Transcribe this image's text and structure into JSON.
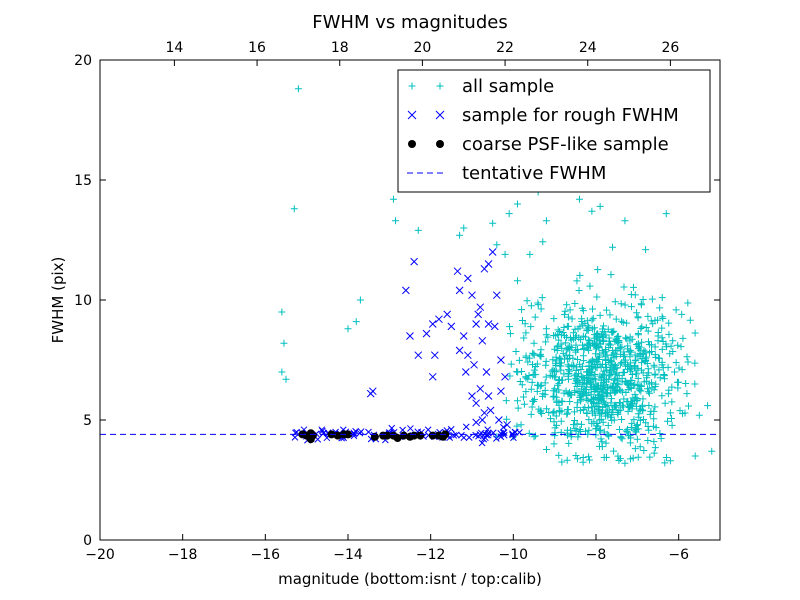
{
  "chart_data": {
    "type": "scatter",
    "title": "FWHM vs magnitudes",
    "xlabel": "magnitude (bottom:isnt / top:calib)",
    "ylabel": "FWHM (pix)",
    "xlim": [
      -20,
      -5
    ],
    "ylim": [
      0,
      20
    ],
    "x_ticks": [
      -20,
      -18,
      -16,
      -14,
      -12,
      -10,
      -8,
      -6
    ],
    "x_tick_labels": [
      "−20",
      "−18",
      "−16",
      "−14",
      "−12",
      "−10",
      "−8",
      "−6"
    ],
    "y_ticks": [
      0,
      5,
      10,
      15,
      20
    ],
    "y_tick_labels": [
      "0",
      "5",
      "10",
      "15",
      "20"
    ],
    "top_axis": {
      "offset": 32.2,
      "ticks": [
        14,
        16,
        18,
        20,
        22,
        24,
        26
      ],
      "tick_labels": [
        "14",
        "16",
        "18",
        "20",
        "22",
        "24",
        "26"
      ]
    },
    "grid": false,
    "legend_position": "top-right",
    "series": [
      {
        "name": "all sample",
        "marker": "+",
        "color": "#00bfbf",
        "points": [
          [
            -15.2,
            18.8
          ],
          [
            -15.3,
            13.8
          ],
          [
            -15.6,
            9.5
          ],
          [
            -15.55,
            8.2
          ],
          [
            -15.6,
            7.0
          ],
          [
            -15.5,
            6.7
          ],
          [
            -13.7,
            10.0
          ],
          [
            -14.0,
            8.8
          ],
          [
            -13.8,
            9.1
          ],
          [
            -12.9,
            14.2
          ],
          [
            -12.85,
            13.3
          ],
          [
            -12.3,
            12.9
          ],
          [
            -11.6,
            19.4
          ],
          [
            -11.5,
            16.5
          ],
          [
            -11.4,
            15.3
          ],
          [
            -11.3,
            12.7
          ],
          [
            -11.2,
            13.0
          ],
          [
            -10.5,
            13.2
          ],
          [
            -10.4,
            12.3
          ],
          [
            -10.2,
            11.9
          ],
          [
            -10.1,
            13.6
          ],
          [
            -9.9,
            14.0
          ],
          [
            -9.6,
            14.9
          ],
          [
            -9.4,
            14.5
          ],
          [
            -9.1,
            15.1
          ],
          [
            -8.9,
            15.6
          ],
          [
            -8.7,
            14.8
          ],
          [
            -8.4,
            14.2
          ],
          [
            -8.2,
            14.8
          ],
          [
            -7.9,
            13.9
          ],
          [
            -7.6,
            12.2
          ],
          [
            -7.3,
            13.3
          ],
          [
            -6.8,
            12.1
          ],
          [
            -6.3,
            13.6
          ],
          [
            -9.2,
            13.3
          ],
          [
            -8.1,
            13.7
          ],
          [
            -6.9,
            9.8
          ],
          [
            -6.5,
            8.3
          ],
          [
            -6.4,
            7.4
          ],
          [
            -6.1,
            7.0
          ],
          [
            -5.8,
            6.1
          ],
          [
            -5.5,
            5.2
          ],
          [
            -5.3,
            5.6
          ],
          [
            -5.2,
            3.7
          ],
          [
            -5.6,
            3.5
          ],
          [
            -6.2,
            3.3
          ],
          [
            -7.3,
            3.2
          ],
          [
            -10.4,
            4.3
          ],
          [
            -10.0,
            4.3
          ],
          [
            -9.5,
            4.3
          ],
          [
            -9.0,
            4.35
          ],
          [
            -8.6,
            4.3
          ],
          [
            -8.2,
            4.4
          ],
          [
            -7.8,
            4.5
          ],
          [
            -7.4,
            4.3
          ],
          [
            -7.0,
            4.2
          ],
          [
            -6.6,
            4.1
          ],
          [
            -9.9,
            5.8
          ],
          [
            -9.7,
            6.8
          ],
          [
            -9.8,
            9.6
          ],
          [
            -9.9,
            10.8
          ],
          [
            -9.5,
            8.2
          ],
          [
            -9.6,
            11.9
          ],
          [
            -9.3,
            10.1
          ],
          [
            -9.2,
            8.8
          ],
          [
            -9.0,
            6.3
          ]
        ],
        "cluster": {
          "count": 950,
          "x_range": [
            -10.2,
            -5.5
          ],
          "center": [
            -7.9,
            6.8
          ],
          "spread": [
            0.9,
            1.6
          ],
          "y_min": 3.2
        }
      },
      {
        "name": "sample for rough FWHM",
        "marker": "x",
        "color": "#0000ff",
        "points": [
          [
            -13.4,
            6.2
          ],
          [
            -12.6,
            10.4
          ],
          [
            -12.5,
            8.5
          ],
          [
            -12.3,
            7.7
          ],
          [
            -12.4,
            11.6
          ],
          [
            -12.1,
            8.6
          ],
          [
            -11.95,
            9.0
          ],
          [
            -11.8,
            9.2
          ],
          [
            -11.9,
            7.7
          ],
          [
            -11.95,
            6.8
          ],
          [
            -11.6,
            9.4
          ],
          [
            -11.5,
            8.9
          ],
          [
            -11.35,
            11.2
          ],
          [
            -11.3,
            10.4
          ],
          [
            -11.1,
            10.9
          ],
          [
            -11.0,
            10.2
          ],
          [
            -11.2,
            8.5
          ],
          [
            -11.1,
            7.7
          ],
          [
            -11.15,
            7.0
          ],
          [
            -10.9,
            9.0
          ],
          [
            -10.8,
            9.7
          ],
          [
            -10.7,
            11.3
          ],
          [
            -10.6,
            11.5
          ],
          [
            -10.6,
            9.0
          ],
          [
            -10.75,
            8.3
          ],
          [
            -10.95,
            7.3
          ],
          [
            -10.65,
            7.0
          ],
          [
            -10.8,
            6.3
          ],
          [
            -10.6,
            6.0
          ],
          [
            -10.9,
            5.7
          ],
          [
            -10.7,
            5.3
          ],
          [
            -10.75,
            5.0
          ],
          [
            -10.9,
            4.9
          ],
          [
            -10.55,
            5.4
          ],
          [
            -10.45,
            8.9
          ],
          [
            -10.4,
            10.2
          ],
          [
            -10.3,
            7.5
          ],
          [
            -10.3,
            6.2
          ],
          [
            -10.35,
            5.0
          ],
          [
            -10.2,
            6.8
          ],
          [
            -10.15,
            4.8
          ],
          [
            -11.3,
            7.9
          ],
          [
            -10.5,
            12.0
          ],
          [
            -11.0,
            6.0
          ],
          [
            -10.85,
            9.4
          ],
          [
            -13.45,
            6.1
          ]
        ],
        "band": {
          "count": 100,
          "x_range": [
            -15.3,
            -9.8
          ],
          "y_center": 4.4,
          "y_spread": 0.12
        }
      },
      {
        "name": "coarse PSF-like sample",
        "marker": "o",
        "color": "#000000",
        "points": [
          [
            -15.1,
            4.4
          ],
          [
            -15.0,
            4.35
          ],
          [
            -14.9,
            4.45
          ],
          [
            -14.9,
            4.2
          ],
          [
            -14.85,
            4.35
          ],
          [
            -14.4,
            4.4
          ],
          [
            -14.25,
            4.35
          ],
          [
            -14.1,
            4.4
          ],
          [
            -14.0,
            4.4
          ],
          [
            -13.35,
            4.3
          ],
          [
            -13.15,
            4.35
          ],
          [
            -13.05,
            4.35
          ],
          [
            -12.9,
            4.35
          ],
          [
            -12.8,
            4.25
          ],
          [
            -12.65,
            4.35
          ],
          [
            -12.5,
            4.3
          ],
          [
            -12.4,
            4.35
          ],
          [
            -12.25,
            4.35
          ],
          [
            -11.95,
            4.35
          ],
          [
            -11.8,
            4.35
          ],
          [
            -11.7,
            4.3
          ],
          [
            -11.65,
            4.4
          ]
        ]
      }
    ],
    "reference_line": {
      "name": "tentative FWHM",
      "style": "dashed",
      "color": "#0000ff",
      "y": 4.4
    }
  }
}
